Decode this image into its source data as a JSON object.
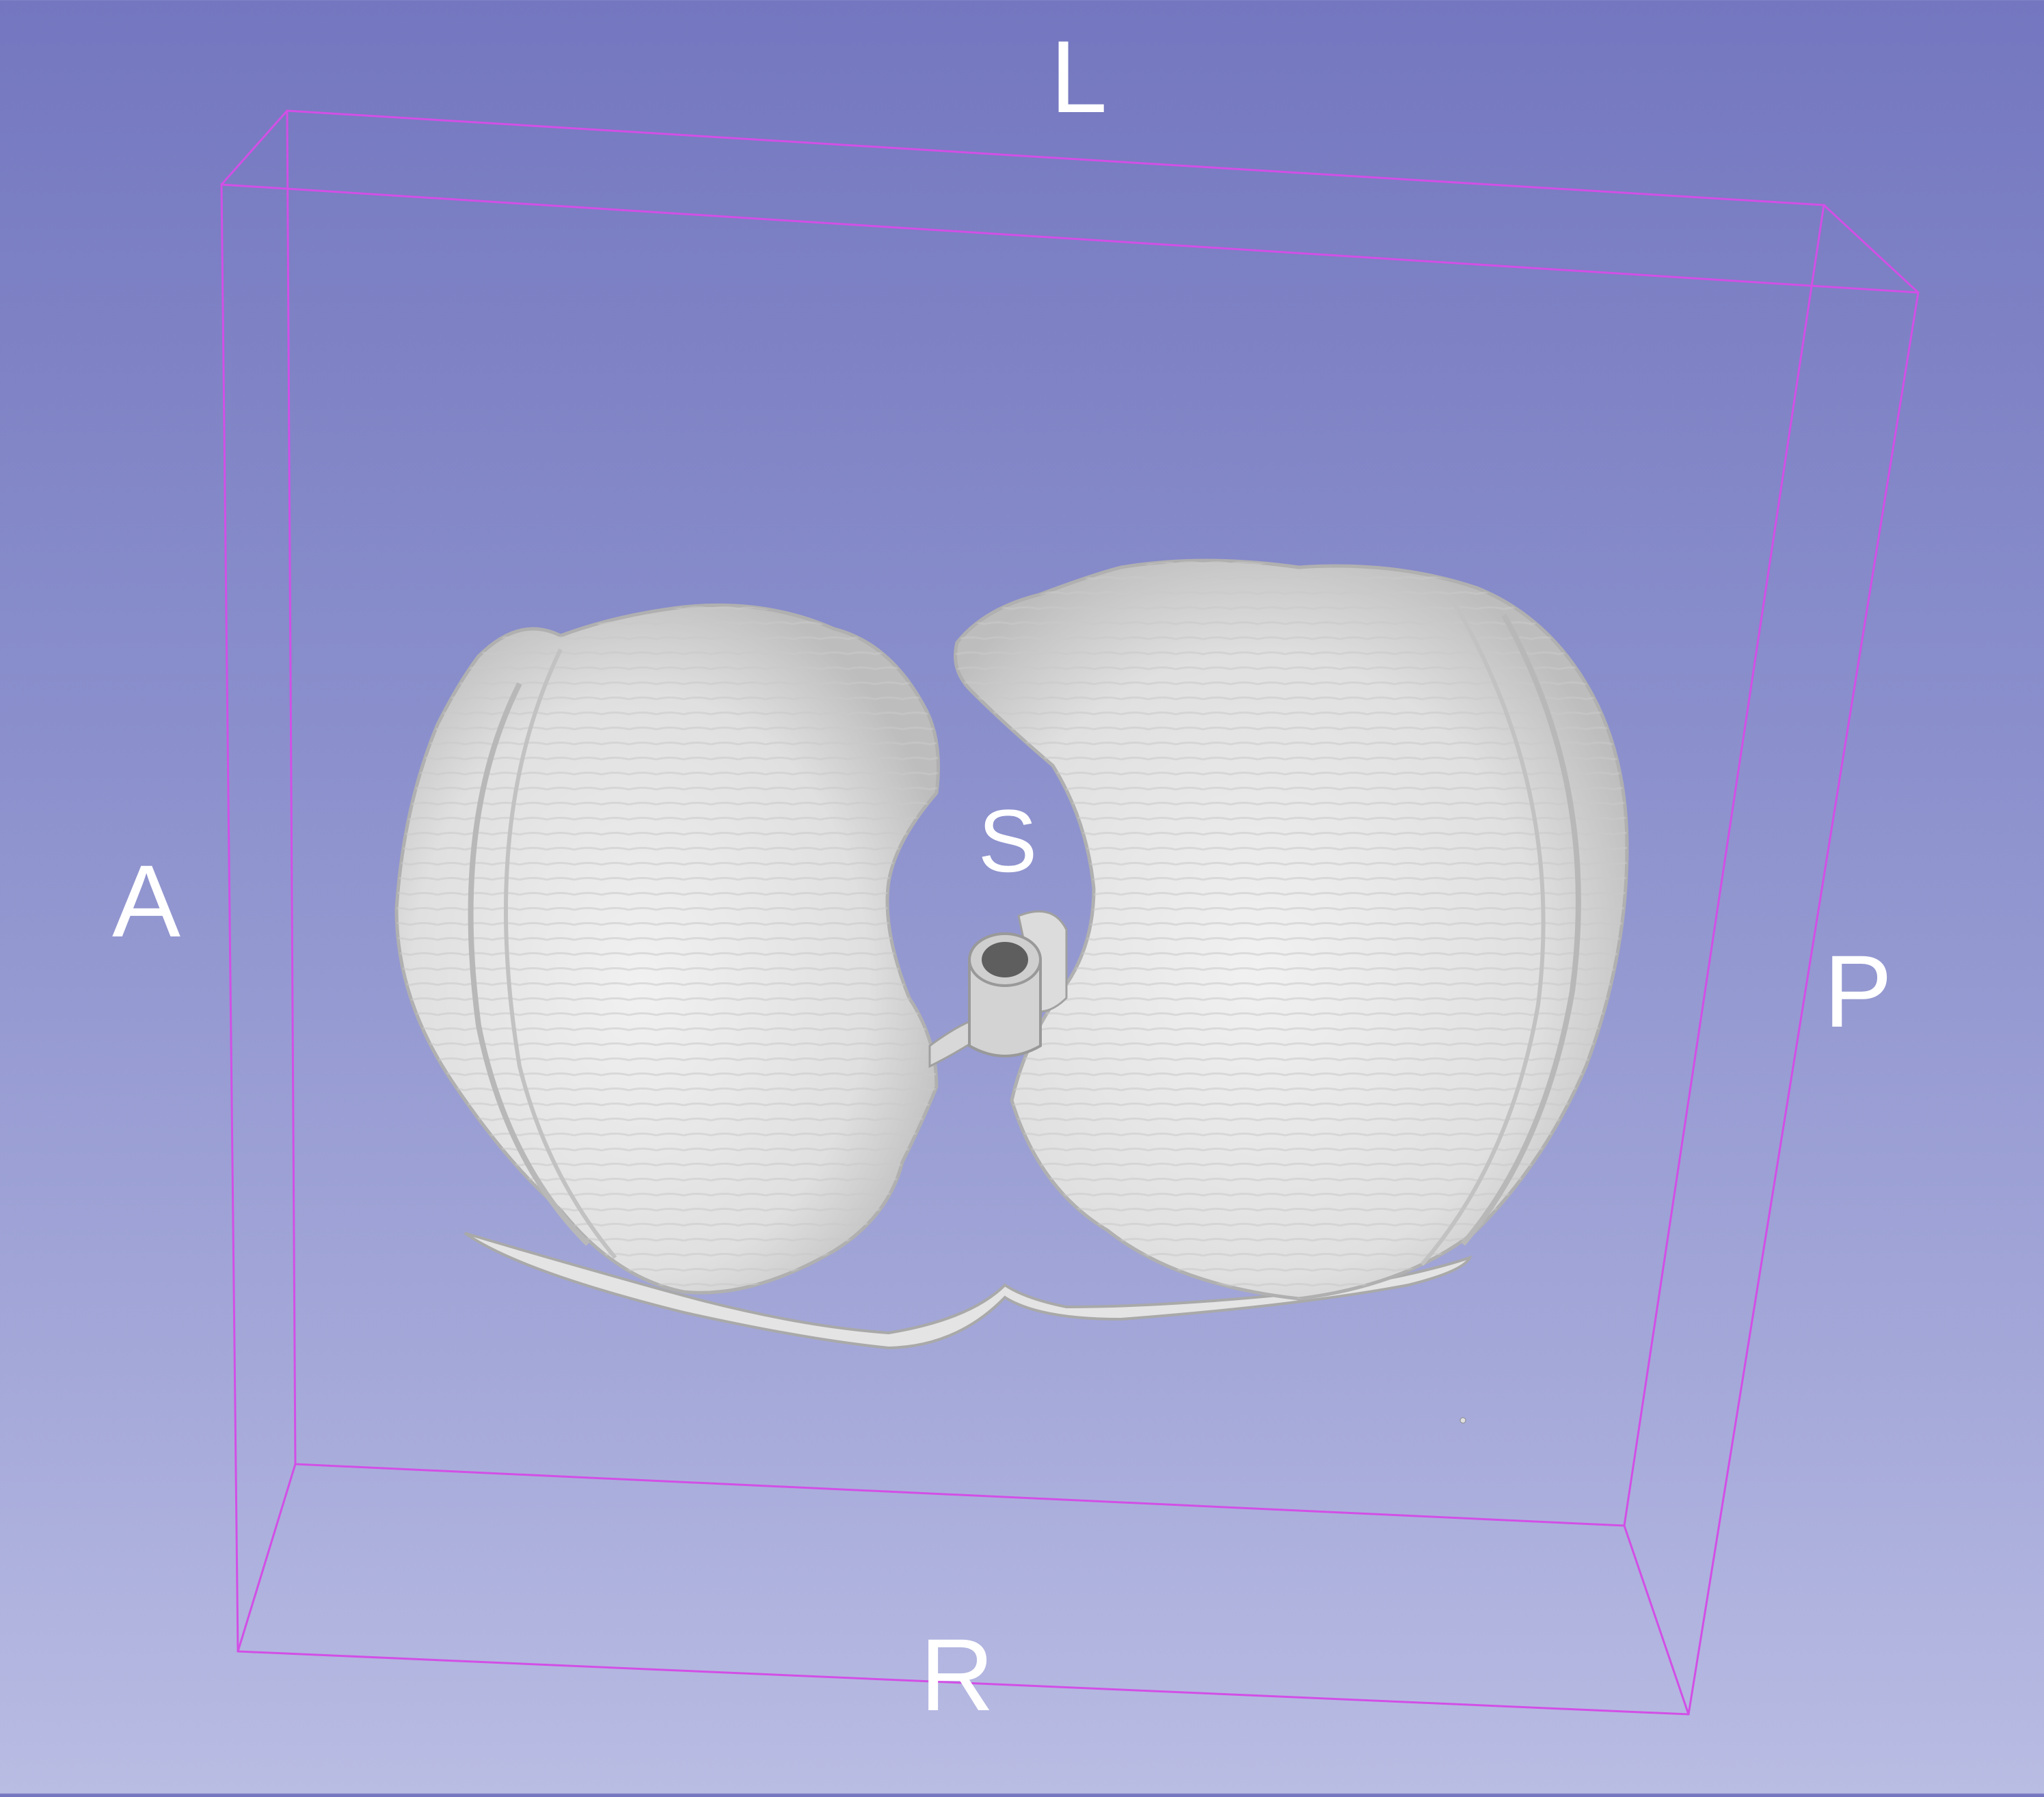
{
  "viewer": {
    "type": "3d-view",
    "background_top": "#7477bf",
    "background_bottom": "#b9bce3",
    "bounding_box_color": "#d24fe6",
    "model_color": "#e6e6e6"
  },
  "orientation": {
    "L": "L",
    "A": "A",
    "P": "P",
    "R": "R",
    "S": "S"
  }
}
